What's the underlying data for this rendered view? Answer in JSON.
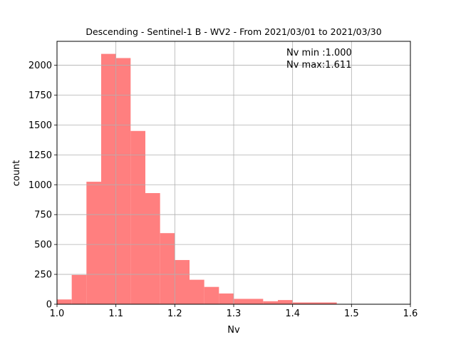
{
  "chart_data": {
    "type": "bar",
    "title": "Descending - Sentinel-1 B - WV2 - From 2021/03/01 to 2021/03/30",
    "xlabel": "Nv",
    "ylabel": "count",
    "xlim": [
      1.0,
      1.6
    ],
    "ylim": [
      0,
      2200
    ],
    "grid": true,
    "bar_color": "#ff7f7f",
    "grid_color": "#b0b0b0",
    "x_ticks": [
      "1.0",
      "1.1",
      "1.2",
      "1.3",
      "1.4",
      "1.5",
      "1.6"
    ],
    "y_ticks": [
      "0",
      "250",
      "500",
      "750",
      "1000",
      "1250",
      "1500",
      "1750",
      "2000"
    ],
    "bins": [
      {
        "x0": 1.0,
        "x1": 1.025,
        "value": 40
      },
      {
        "x0": 1.025,
        "x1": 1.05,
        "value": 245
      },
      {
        "x0": 1.05,
        "x1": 1.075,
        "value": 1025
      },
      {
        "x0": 1.075,
        "x1": 1.1,
        "value": 2095
      },
      {
        "x0": 1.1,
        "x1": 1.125,
        "value": 2060
      },
      {
        "x0": 1.125,
        "x1": 1.15,
        "value": 1450
      },
      {
        "x0": 1.15,
        "x1": 1.175,
        "value": 930
      },
      {
        "x0": 1.175,
        "x1": 1.2,
        "value": 595
      },
      {
        "x0": 1.2,
        "x1": 1.225,
        "value": 370
      },
      {
        "x0": 1.225,
        "x1": 1.25,
        "value": 205
      },
      {
        "x0": 1.25,
        "x1": 1.275,
        "value": 145
      },
      {
        "x0": 1.275,
        "x1": 1.3,
        "value": 90
      },
      {
        "x0": 1.3,
        "x1": 1.35,
        "value": 45
      },
      {
        "x0": 1.35,
        "x1": 1.375,
        "value": 25
      },
      {
        "x0": 1.375,
        "x1": 1.4,
        "value": 35
      },
      {
        "x0": 1.4,
        "x1": 1.475,
        "value": 15
      }
    ],
    "annotations": [
      "Nv min :1.000",
      "Nv max:1.611"
    ]
  }
}
